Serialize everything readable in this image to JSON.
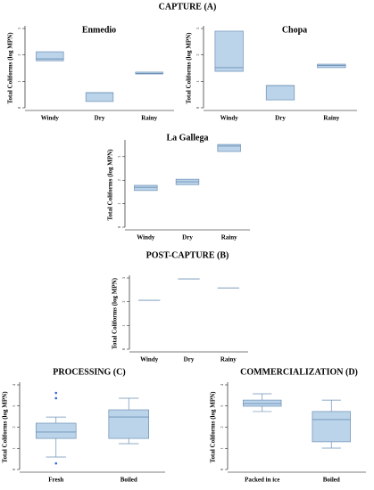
{
  "heading": "CAPTURE (A)",
  "chart_data": [
    {
      "type": "box",
      "title": "Enmedio",
      "ylabel": "Total Coliforms (log MPN)",
      "categories": [
        "Windy",
        "Dry",
        "Rainy"
      ],
      "q1": [
        1.78,
        0.24,
        1.28
      ],
      "median": [
        1.85,
        0.57,
        1.3
      ],
      "q3": [
        2.12,
        0.57,
        1.35
      ],
      "ylim": [
        0,
        3
      ],
      "yticks": [
        0,
        1,
        2,
        3
      ],
      "color": "#bcd4ea"
    },
    {
      "type": "box",
      "title": "Chopa",
      "ylabel": "Total Coliforms (log MPN)",
      "categories": [
        "Windy",
        "Dry",
        "Rainy"
      ],
      "q1": [
        1.38,
        0.3,
        1.52
      ],
      "median": [
        1.52,
        0.84,
        1.6
      ],
      "q3": [
        2.9,
        0.84,
        1.65
      ],
      "ylim": [
        0,
        3
      ],
      "yticks": [
        0,
        1,
        2,
        3
      ],
      "color": "#bcd4ea"
    },
    {
      "type": "box",
      "title": "La Gallega",
      "ylabel": "Total Coliforms (log MPN)",
      "categories": [
        "Windy",
        "Dry",
        "Rainy"
      ],
      "q1": [
        1.56,
        1.81,
        3.22
      ],
      "median": [
        1.7,
        1.93,
        3.45
      ],
      "q3": [
        1.78,
        2.04,
        3.52
      ],
      "ylim": [
        0,
        3.6
      ],
      "yticks": [
        0,
        1,
        2,
        3
      ],
      "color": "#bcd4ea"
    },
    {
      "type": "box",
      "title": "POST-CAPTURE   (B)",
      "ylabel": "Total Coliforms (log MPN)",
      "categories": [
        "Windy",
        "Dry",
        "Rainy"
      ],
      "q1": [
        2.06,
        2.96,
        2.58
      ],
      "median": [
        2.06,
        2.96,
        2.58
      ],
      "q3": [
        2.06,
        2.96,
        2.58
      ],
      "ylim": [
        0,
        3
      ],
      "yticks": [
        0,
        1,
        2,
        3
      ],
      "color": "#bcd4ea"
    },
    {
      "type": "box",
      "title": "PROCESSING   (C)",
      "ylabel": "Total Coliforms (log MPN)",
      "categories": [
        "Fresh",
        "Boiled"
      ],
      "whisker_low": [
        0.59,
        1.22
      ],
      "q1": [
        1.47,
        1.47
      ],
      "median": [
        1.77,
        2.48
      ],
      "q3": [
        2.19,
        2.82
      ],
      "whisker_high": [
        2.48,
        3.37
      ],
      "outliers": [
        [
          3.62,
          3.37,
          0.29
        ],
        []
      ],
      "ylim": [
        0,
        4
      ],
      "yticks": [
        0,
        1,
        2,
        3,
        4
      ],
      "color": "#bcd4ea"
    },
    {
      "type": "box",
      "title": "COMMERCIALIZATION   (D)",
      "ylabel": "Total Coliforms (log MPN)",
      "categories": [
        "Packed in ice",
        "Boiled"
      ],
      "whisker_low": [
        2.74,
        1.01
      ],
      "q1": [
        2.99,
        1.31
      ],
      "median": [
        3.12,
        2.36
      ],
      "q3": [
        3.28,
        2.74
      ],
      "whisker_high": [
        3.58,
        3.28
      ],
      "ylim": [
        0,
        4
      ],
      "yticks": [
        0,
        1,
        2,
        3,
        4
      ],
      "color": "#bcd4ea"
    }
  ]
}
